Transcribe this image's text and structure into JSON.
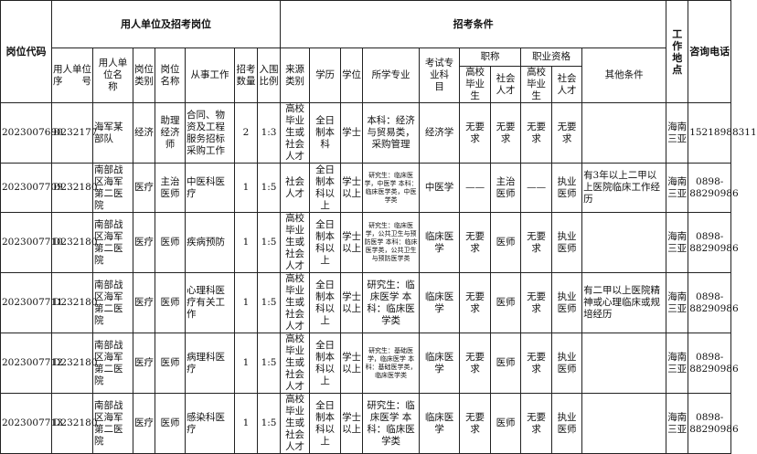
{
  "headers": {
    "code": "岗位代码",
    "unit_group": "用人单位及招考岗位",
    "cond_group": "招考条件",
    "location": "工作地点",
    "phone": "咨询电话",
    "unit_no": "用人单位序　　号",
    "unit_name": "用人单位名　　称",
    "post_type": "岗位类别",
    "post_name": "岗位名称",
    "work": "从事工作",
    "count": "招考数量",
    "ratio": "入围比例",
    "source": "来源类别",
    "education": "学历",
    "degree": "学位",
    "major": "所学专业",
    "exam": "考试专业科　　目",
    "title_group": "职称",
    "qual_group": "职业资格",
    "other": "其他条件",
    "grad": "高校毕业生",
    "social": "社会人才"
  },
  "rows": [
    {
      "code": "2023007690",
      "unit_no": "D232177",
      "unit_name": "海军某部队",
      "post_type": "经济",
      "post_name": "助理经济师",
      "work": "合同、物资及工程服务招标采购工作",
      "count": "2",
      "ratio": "1:3",
      "source": "高校毕业生或社会人才",
      "education": "全日制本科",
      "degree": "学士",
      "major": "本科：经济与贸易类，采购管理",
      "major_small": false,
      "exam": "经济学",
      "title_grad": "无要求",
      "title_social": "无要求",
      "qual_grad": "无要求",
      "qual_social": "无要求",
      "other": "",
      "location": "海南三亚",
      "phone": "15218988311"
    },
    {
      "code": "2023007709",
      "unit_no": "D232180",
      "unit_name": "南部战区海军第二医院",
      "post_type": "医疗",
      "post_name": "主治医师",
      "work": "中医科医疗",
      "count": "1",
      "ratio": "1:5",
      "source": "社会人才",
      "education": "全日制本科以上",
      "degree": "学士以上",
      "major": "研究生：临床医学，中医学 本科：临床医学类，中医学类",
      "major_small": true,
      "exam": "中医学",
      "title_grad": "——",
      "title_social": "主治医师",
      "qual_grad": "——",
      "qual_social": "执业医师",
      "other": "有3年以上二甲以上医院临床工作经历",
      "location": "海南三亚",
      "phone": "0898-88290986"
    },
    {
      "code": "2023007710",
      "unit_no": "D232180",
      "unit_name": "南部战区海军第二医院",
      "post_type": "医疗",
      "post_name": "医师",
      "work": "疾病预防",
      "count": "1",
      "ratio": "1:5",
      "source": "高校毕业生或社会人才",
      "education": "全日制本科以上",
      "degree": "学士以上",
      "major": "研究生：临床医学，公共卫生与预防医学 本科：临床医学类，公共卫生与预防医学类",
      "major_small": true,
      "exam": "临床医学",
      "title_grad": "无要求",
      "title_social": "医师",
      "qual_grad": "无要求",
      "qual_social": "执业医师",
      "other": "",
      "location": "海南三亚",
      "phone": "0898-88290986"
    },
    {
      "code": "2023007711",
      "unit_no": "D232180",
      "unit_name": "南部战区海军第二医院",
      "post_type": "医疗",
      "post_name": "医师",
      "work": "心理科医疗有关工作",
      "count": "1",
      "ratio": "1:5",
      "source": "高校毕业生或社会人才",
      "education": "全日制本科以上",
      "degree": "学士以上",
      "major": "研究生：临床医学 本科：临床医学类",
      "major_small": false,
      "exam": "临床医学",
      "title_grad": "无要求",
      "title_social": "医师",
      "qual_grad": "无要求",
      "qual_social": "执业医师",
      "other": "有二甲以上医院精神或心理临床或规培经历",
      "location": "海南三亚",
      "phone": "0898-88290986"
    },
    {
      "code": "2023007712",
      "unit_no": "D232180",
      "unit_name": "南部战区海军第二医院",
      "post_type": "医疗",
      "post_name": "医师",
      "work": "病理科医疗",
      "count": "1",
      "ratio": "1:5",
      "source": "高校毕业生或社会人才",
      "education": "全日制本科以上",
      "degree": "学士以上",
      "major": "研究生：基础医学，临床医学 本科：基础医学类，临床医学类",
      "major_small": true,
      "exam": "临床医学",
      "title_grad": "无要求",
      "title_social": "医师",
      "qual_grad": "无要求",
      "qual_social": "执业医师",
      "other": "",
      "location": "海南三亚",
      "phone": "0898-88290986"
    },
    {
      "code": "2023007713",
      "unit_no": "D232180",
      "unit_name": "南部战区海军第二医院",
      "post_type": "医疗",
      "post_name": "医师",
      "work": "感染科医疗",
      "count": "1",
      "ratio": "1:5",
      "source": "高校毕业生或社会人才",
      "education": "全日制本科以上",
      "degree": "学士以上",
      "major": "研究生：临床医学 本科：临床医学类",
      "major_small": false,
      "exam": "临床医学",
      "title_grad": "无要求",
      "title_social": "医师",
      "qual_grad": "无要求",
      "qual_social": "执业医师",
      "other": "",
      "location": "海南三亚",
      "phone": "0898-88290986"
    }
  ]
}
